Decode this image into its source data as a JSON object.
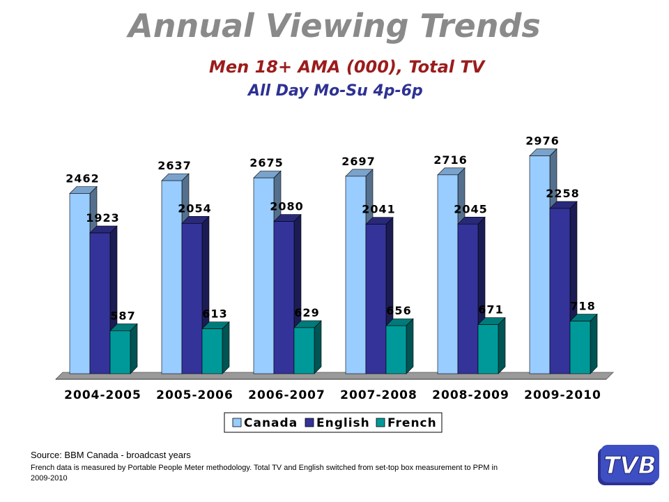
{
  "header": {
    "title": "Annual Viewing Trends",
    "subtitle": "Men 18+ AMA (000), Total TV",
    "subtitle2": "All Day Mo-Su 4p-6p"
  },
  "footer": {
    "source": "Source: BBM Canada - broadcast years",
    "note": "French data is measured by Portable People Meter methodology. Total TV and English switched from set-top box measurement  to PPM in 2009-2010"
  },
  "logo": {
    "text": "TVB"
  },
  "chart_data": {
    "type": "bar",
    "title": "",
    "xlabel": "",
    "ylabel": "",
    "ylim": [
      0,
      3200
    ],
    "grid": false,
    "legend": "bottom-center",
    "categories": [
      "2004-2005",
      "2005-2006",
      "2006-2007",
      "2007-2008",
      "2008-2009",
      "2009-2010"
    ],
    "series": [
      {
        "name": "Canada",
        "values": [
          2462,
          2637,
          2675,
          2697,
          2716,
          2976
        ],
        "color": "#99ccff"
      },
      {
        "name": "English",
        "values": [
          1923,
          2054,
          2080,
          2041,
          2045,
          2258
        ],
        "color": "#333399"
      },
      {
        "name": "French",
        "values": [
          587,
          613,
          629,
          656,
          671,
          718
        ],
        "color": "#009999"
      }
    ]
  }
}
